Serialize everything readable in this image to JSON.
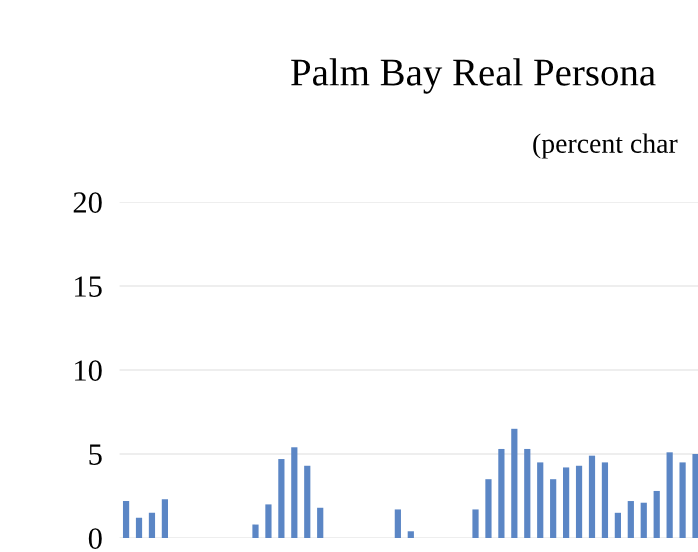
{
  "chart_data": {
    "type": "bar",
    "title": "Palm Bay Real Persona",
    "subtitle": "(percent char",
    "categories": [
      null,
      null,
      null,
      null,
      null,
      null,
      null,
      null,
      null,
      null,
      null,
      null,
      null,
      null,
      null,
      null,
      null,
      null,
      null,
      null,
      null,
      null,
      null,
      null,
      null,
      null,
      null,
      null,
      null,
      null,
      null,
      null,
      null,
      null,
      null,
      null,
      null,
      null,
      null,
      null,
      null,
      null,
      null,
      null,
      null
    ],
    "values": [
      2.2,
      1.2,
      1.5,
      2.3,
      null,
      null,
      null,
      null,
      null,
      null,
      0.8,
      2.0,
      4.7,
      5.4,
      4.3,
      1.8,
      null,
      null,
      null,
      null,
      null,
      1.7,
      0.4,
      null,
      null,
      null,
      null,
      1.7,
      3.5,
      5.3,
      6.5,
      5.3,
      4.5,
      3.5,
      4.2,
      4.3,
      4.9,
      4.5,
      1.5,
      2.2,
      2.1,
      2.8,
      5.1,
      4.5,
      5.0
    ],
    "color": "#5b86c5",
    "ylim": [
      0,
      20
    ],
    "yticks": [
      0,
      5,
      10,
      15,
      20
    ],
    "grid": "y"
  }
}
